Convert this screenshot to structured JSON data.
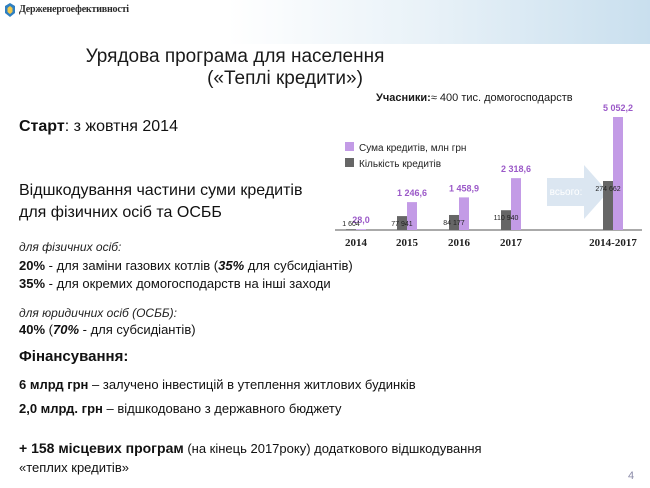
{
  "header": {
    "org_name": "Держенергоефективності"
  },
  "title": {
    "line1": "Урядова програма для населення",
    "line2": "(«Теплі кредити»)"
  },
  "participants": {
    "label": "Учасники:",
    "value": "≈ 400 тис. домогосподарств"
  },
  "start": {
    "label": "Старт",
    "value": ": з жовтня 2014"
  },
  "compensation": {
    "line1": "Відшкодування частини суми кредитів",
    "line2": "для фізичних осіб та ОСББ"
  },
  "individuals": {
    "heading": "для фізичних осіб:",
    "row1_pct": "20%",
    "row1_text": " - для заміни газових котлів  (",
    "row1_sub_pct": "35%",
    "row1_sub_text": " для субсидіантів)",
    "row2_pct": "35%",
    "row2_text": " - для окремих домогосподарств на інші заходи"
  },
  "legal": {
    "heading": "для юридичних осіб (ОСББ):",
    "pct": "40%",
    "open": " (",
    "sub_pct": "70%",
    "sub_text": " - для субсидіантів)"
  },
  "financing": {
    "heading": "Фінансування:",
    "row1_bold": "6 млрд грн",
    "row1_text": " – залучено інвестицій в утеплення житлових будинків",
    "row2_bold": "2,0 млрд. грн",
    "row2_text": " – відшкодовано з державного бюджету"
  },
  "programs": {
    "bold": "+ 158 місцевих програм",
    "text_line1": " (на кінець 2017року) додаткового відшкодування",
    "text_line2": "«теплих кредитів»"
  },
  "arrow_label": "всього:",
  "page_number": "4",
  "colors": {
    "sum_series": "#c39be6",
    "count_series": "#666666",
    "sum_label": "#9b59c8",
    "arrow": "#dbe6f1"
  },
  "chart_data": {
    "type": "bar",
    "categories": [
      "2014",
      "2015",
      "2016",
      "2017",
      "2014-2017"
    ],
    "series": [
      {
        "name": "Кількість кредитів",
        "values": [
          1604,
          77941,
          84177,
          110940,
          274662
        ],
        "labels": [
          "1 604",
          "77 941",
          "84 177",
          "110 940",
          "274 662"
        ]
      },
      {
        "name": "Сума кредитів, млн грн",
        "values": [
          28.0,
          1246.6,
          1458.9,
          2318.6,
          5052.2
        ],
        "labels": [
          "28,0",
          "1 246,6",
          "1 458,9",
          "2 318,6",
          "5 052,2"
        ]
      }
    ],
    "legend": "top-left",
    "grid": false
  }
}
